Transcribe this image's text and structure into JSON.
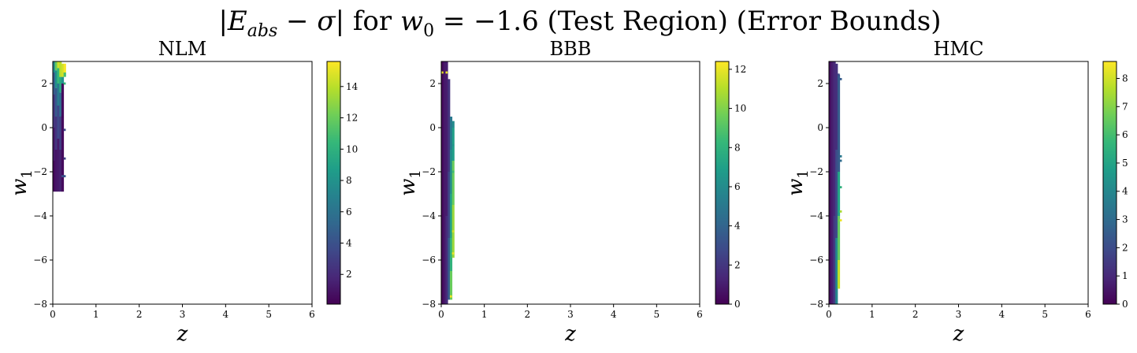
{
  "figure": {
    "suptitle": "|Eabs − σ| for w0 = −1.6 (Test Region) (Error Bounds)",
    "suptitle_parts": {
      "bar_open": "|",
      "E": "E",
      "E_sub": "abs",
      "minus_sigma": " − σ",
      "bar_close": "|",
      "for": " for ",
      "w": "w",
      "w_sub": "0",
      "rest": " = −1.6 (Test Region) (Error Bounds)"
    }
  },
  "colormap": "viridis",
  "colors": {
    "viridis_stops": [
      "#440154",
      "#482878",
      "#3e4989",
      "#31688e",
      "#26828e",
      "#1f9e89",
      "#35b779",
      "#6ece58",
      "#b5de2b",
      "#fde725"
    ]
  },
  "chart_data": [
    {
      "type": "heatmap",
      "title": "NLM",
      "xlabel": "z",
      "ylabel_base": "w",
      "ylabel_sub": "1",
      "xlim": [
        0,
        6
      ],
      "ylim": [
        -8,
        3
      ],
      "xticks": [
        "0",
        "1",
        "2",
        "3",
        "4",
        "5",
        "6"
      ],
      "yticks": [
        "−8",
        "−6",
        "−4",
        "−2",
        "0",
        "2"
      ],
      "grid": false,
      "cell_w": 0.05,
      "cell_h": 0.1,
      "colorbar": {
        "min": 0.1,
        "max": 15.6,
        "ticks": [
          "2",
          "4",
          "6",
          "8",
          "10",
          "12",
          "14"
        ],
        "tick_values": [
          2,
          4,
          6,
          8,
          10,
          12,
          14
        ]
      },
      "columns": [
        {
          "x": 0.025,
          "segments": [
            [
              -2.9,
              -1.5,
              0.5
            ],
            [
              -1.5,
              0.0,
              1.2
            ],
            [
              0.0,
              1.5,
              2.5
            ],
            [
              1.5,
              2.5,
              4.5
            ],
            [
              2.5,
              3.0,
              7.5
            ]
          ]
        },
        {
          "x": 0.075,
          "segments": [
            [
              -2.9,
              -1.0,
              1.0
            ],
            [
              -1.0,
              0.5,
              2.5
            ],
            [
              0.5,
              1.8,
              4.5
            ],
            [
              1.8,
              2.6,
              8.0
            ],
            [
              2.6,
              3.0,
              12.0
            ]
          ]
        },
        {
          "x": 0.125,
          "segments": [
            [
              -2.9,
              -0.5,
              1.2
            ],
            [
              -0.5,
              1.0,
              3.5
            ],
            [
              1.0,
              2.0,
              6.5
            ],
            [
              2.0,
              2.7,
              10.5
            ],
            [
              2.7,
              3.0,
              14.5
            ]
          ]
        },
        {
          "x": 0.175,
          "segments": [
            [
              -2.9,
              -1.0,
              1.5
            ],
            [
              -1.0,
              0.5,
              3.0
            ],
            [
              0.5,
              1.6,
              5.5
            ],
            [
              1.6,
              2.3,
              9.5
            ],
            [
              2.3,
              3.0,
              14.0
            ]
          ]
        },
        {
          "x": 0.225,
          "segments": [
            [
              -2.9,
              2.0,
              0.5
            ],
            [
              2.0,
              2.3,
              8.0
            ],
            [
              2.3,
              2.9,
              14.5
            ]
          ]
        },
        {
          "x": 0.275,
          "segments": [
            [
              2.3,
              2.5,
              11.0
            ],
            [
              2.5,
              2.9,
              15.5
            ]
          ]
        }
      ],
      "marks": [
        {
          "x": 0.225,
          "y": -2.2,
          "v": 4.0
        },
        {
          "x": 0.275,
          "y": -2.2,
          "v": 4.5
        },
        {
          "x": 0.275,
          "y": -1.4,
          "v": 3.0
        },
        {
          "x": 0.275,
          "y": -0.1,
          "v": 3.5
        },
        {
          "x": 0.225,
          "y": 0.5,
          "v": 0.3
        },
        {
          "x": 0.275,
          "y": 2.0,
          "v": 10.5
        }
      ]
    },
    {
      "type": "heatmap",
      "title": "BBB",
      "xlabel": "z",
      "ylabel_base": "w",
      "ylabel_sub": "1",
      "xlim": [
        0,
        6
      ],
      "ylim": [
        -8,
        3
      ],
      "xticks": [
        "0",
        "1",
        "2",
        "3",
        "4",
        "5",
        "6"
      ],
      "yticks": [
        "−8",
        "−6",
        "−4",
        "−2",
        "0",
        "2"
      ],
      "grid": false,
      "cell_w": 0.05,
      "cell_h": 0.1,
      "colorbar": {
        "min": 0,
        "max": 12.4,
        "ticks": [
          "0",
          "2",
          "4",
          "6",
          "8",
          "10",
          "12"
        ],
        "tick_values": [
          0,
          2,
          4,
          6,
          8,
          10,
          12
        ]
      },
      "columns": [
        {
          "x": 0.025,
          "segments": [
            [
              -8.0,
              3.0,
              0.3
            ]
          ]
        },
        {
          "x": 0.075,
          "segments": [
            [
              -8.0,
              3.0,
              0.8
            ]
          ]
        },
        {
          "x": 0.125,
          "segments": [
            [
              -8.0,
              -4.0,
              1.5
            ],
            [
              -4.0,
              3.0,
              1.0
            ]
          ]
        },
        {
          "x": 0.175,
          "segments": [
            [
              -7.8,
              -5.0,
              3.5
            ],
            [
              -5.0,
              -2.0,
              2.5
            ],
            [
              -2.0,
              2.2,
              1.8
            ]
          ]
        },
        {
          "x": 0.225,
          "segments": [
            [
              -7.8,
              -6.5,
              9.5
            ],
            [
              -6.5,
              -5.0,
              8.0
            ],
            [
              -5.0,
              -3.0,
              7.0
            ],
            [
              -3.0,
              -1.0,
              6.0
            ],
            [
              -1.0,
              0.5,
              5.0
            ]
          ]
        },
        {
          "x": 0.275,
          "segments": [
            [
              -5.9,
              -3.5,
              10.5
            ],
            [
              -3.5,
              -1.5,
              9.5
            ],
            [
              -1.5,
              0.0,
              7.0
            ],
            [
              0.0,
              0.3,
              6.0
            ]
          ]
        }
      ],
      "marks": [
        {
          "x": 0.025,
          "y": 2.5,
          "v": 12.0
        },
        {
          "x": 0.125,
          "y": 2.5,
          "v": 12.0
        },
        {
          "x": 0.225,
          "y": -7.65,
          "v": 12.2
        },
        {
          "x": 0.275,
          "y": -5.7,
          "v": 12.0
        },
        {
          "x": 0.275,
          "y": -4.7,
          "v": 11.5
        },
        {
          "x": 0.275,
          "y": -2.0,
          "v": 8.5
        },
        {
          "x": 0.275,
          "y": -0.8,
          "v": 6.5
        }
      ]
    },
    {
      "type": "heatmap",
      "title": "HMC",
      "xlabel": "z",
      "ylabel_base": "w",
      "ylabel_sub": "1",
      "xlim": [
        0,
        6
      ],
      "ylim": [
        -8,
        3
      ],
      "xticks": [
        "0",
        "1",
        "2",
        "3",
        "4",
        "5",
        "6"
      ],
      "yticks": [
        "−8",
        "−6",
        "−4",
        "−2",
        "0",
        "2"
      ],
      "grid": false,
      "cell_w": 0.05,
      "cell_h": 0.1,
      "colorbar": {
        "min": 0,
        "max": 8.6,
        "ticks": [
          "0",
          "1",
          "2",
          "3",
          "4",
          "5",
          "6",
          "7",
          "8"
        ],
        "tick_values": [
          0,
          1,
          2,
          3,
          4,
          5,
          6,
          7,
          8
        ]
      },
      "columns": [
        {
          "x": 0.025,
          "segments": [
            [
              -8.0,
              3.0,
              0.3
            ]
          ]
        },
        {
          "x": 0.075,
          "segments": [
            [
              -8.0,
              3.0,
              0.7
            ]
          ]
        },
        {
          "x": 0.125,
          "segments": [
            [
              -8.0,
              -4.0,
              1.5
            ],
            [
              -4.0,
              3.0,
              1.0
            ]
          ]
        },
        {
          "x": 0.175,
          "segments": [
            [
              -8.0,
              -5.0,
              4.0
            ],
            [
              -5.0,
              -1.0,
              2.0
            ],
            [
              -1.0,
              2.9,
              1.2
            ]
          ]
        },
        {
          "x": 0.225,
          "segments": [
            [
              -7.3,
              -6.0,
              7.8
            ],
            [
              -6.0,
              -4.0,
              6.5
            ],
            [
              -4.0,
              -2.0,
              5.0
            ],
            [
              -2.0,
              2.4,
              2.5
            ]
          ]
        },
        {
          "x": 0.275,
          "segments": []
        }
      ],
      "marks": [
        {
          "x": 0.275,
          "y": -4.2,
          "v": 8.4
        },
        {
          "x": 0.275,
          "y": -3.8,
          "v": 7.5
        },
        {
          "x": 0.275,
          "y": -2.7,
          "v": 5.5
        },
        {
          "x": 0.275,
          "y": -1.5,
          "v": 3.0
        },
        {
          "x": 0.275,
          "y": -1.3,
          "v": 3.5
        },
        {
          "x": 0.225,
          "y": 2.4,
          "v": 2.0
        },
        {
          "x": 0.275,
          "y": 2.2,
          "v": 2.5
        }
      ]
    }
  ]
}
